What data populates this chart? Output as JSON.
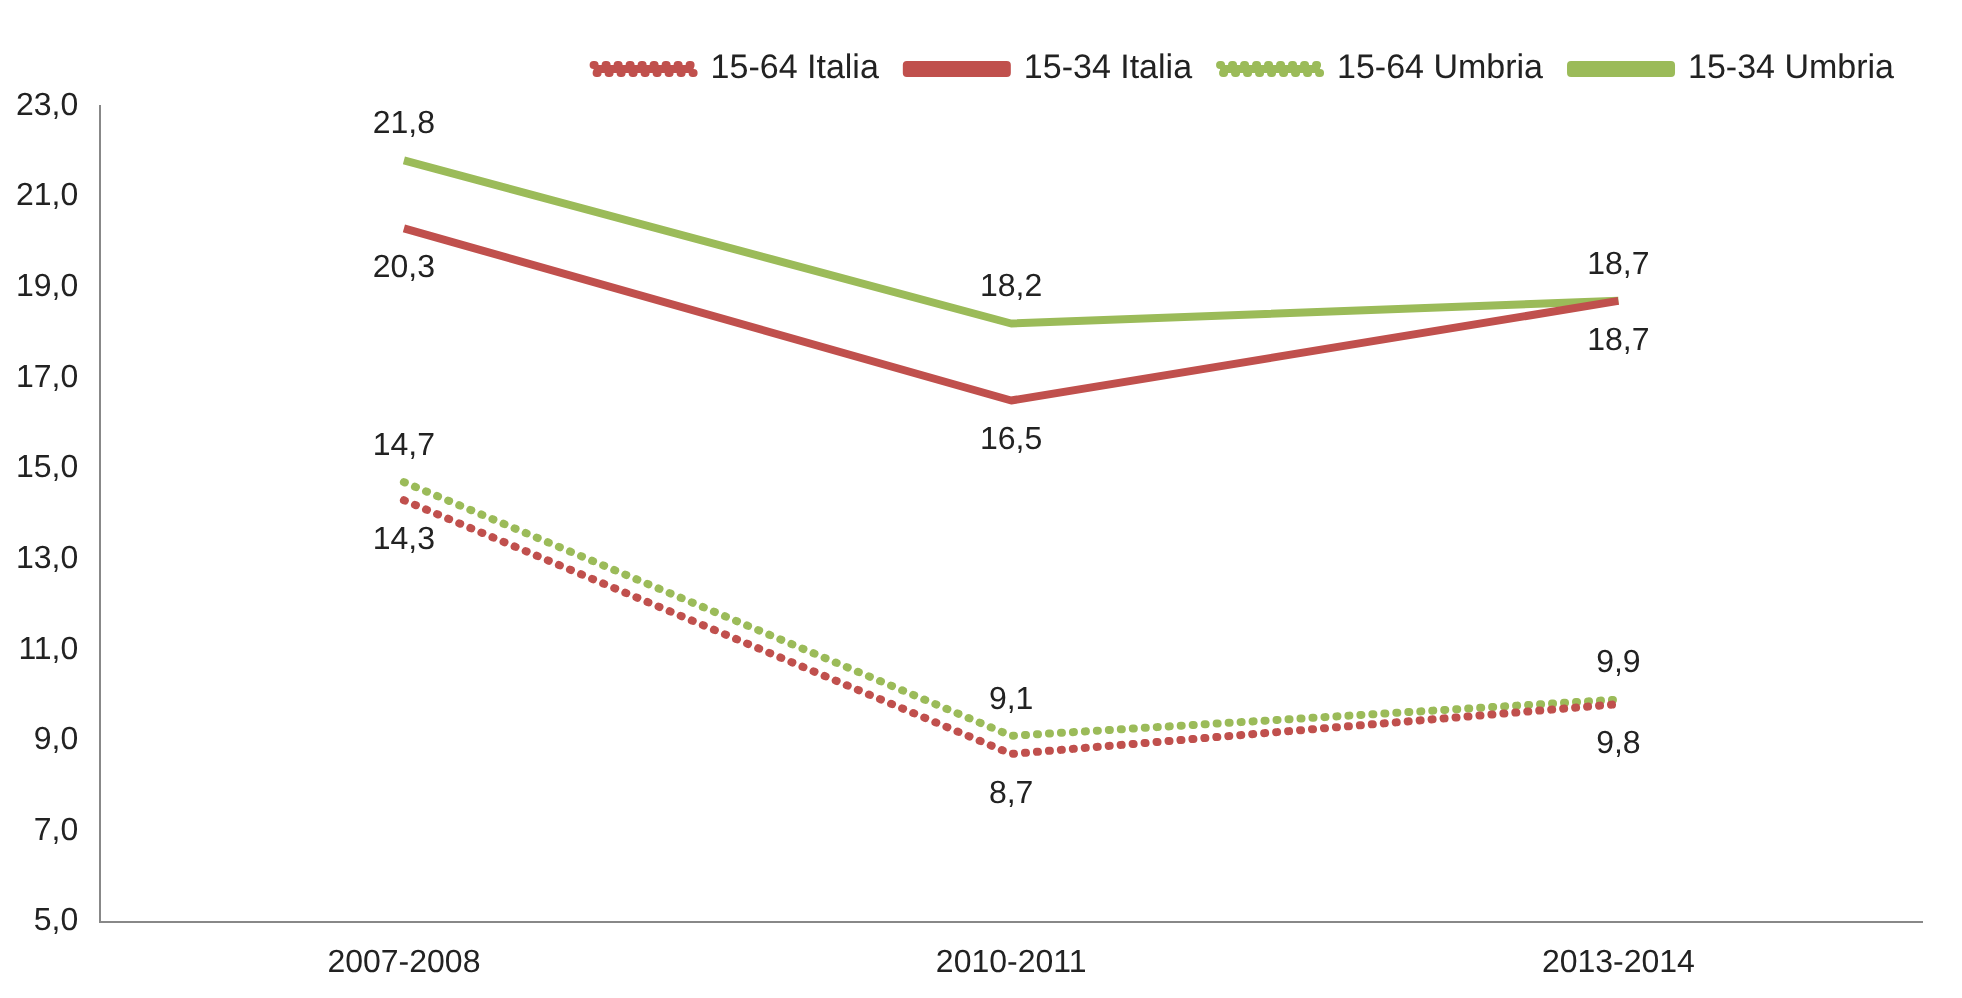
{
  "chart_data": {
    "type": "line",
    "categories": [
      "2007-2008",
      "2010-2011",
      "2013-2014"
    ],
    "series": [
      {
        "name": "15-64 Italia",
        "color": "#c0504d",
        "line_style": "dotted",
        "values": [
          14.3,
          8.7,
          9.8
        ],
        "value_labels": [
          "14,3",
          "8,7",
          "9,8"
        ]
      },
      {
        "name": "15-34 Italia",
        "color": "#c0504d",
        "line_style": "solid",
        "values": [
          20.3,
          16.5,
          18.7
        ],
        "value_labels": [
          "20,3",
          "16,5",
          "18,7"
        ]
      },
      {
        "name": "15-64 Umbria",
        "color": "#9bbb59",
        "line_style": "dotted",
        "values": [
          14.7,
          9.1,
          9.9
        ],
        "value_labels": [
          "14,7",
          "9,1",
          "9,9"
        ]
      },
      {
        "name": "15-34 Umbria",
        "color": "#9bbb59",
        "line_style": "solid",
        "values": [
          21.8,
          18.2,
          18.7
        ],
        "value_labels": [
          "21,8",
          "18,2",
          "18,7"
        ]
      }
    ],
    "ylim": [
      5,
      23
    ],
    "yticks": [
      {
        "value": 5,
        "label": "5,0"
      },
      {
        "value": 7,
        "label": "7,0"
      },
      {
        "value": 9,
        "label": "9,0"
      },
      {
        "value": 11,
        "label": "11,0"
      },
      {
        "value": 13,
        "label": "13,0"
      },
      {
        "value": 15,
        "label": "15,0"
      },
      {
        "value": 17,
        "label": "17,0"
      },
      {
        "value": 19,
        "label": "19,0"
      },
      {
        "value": 21,
        "label": "21,0"
      },
      {
        "value": 23,
        "label": "23,0"
      }
    ],
    "grid": false,
    "legend": "top right",
    "marker": "none"
  }
}
